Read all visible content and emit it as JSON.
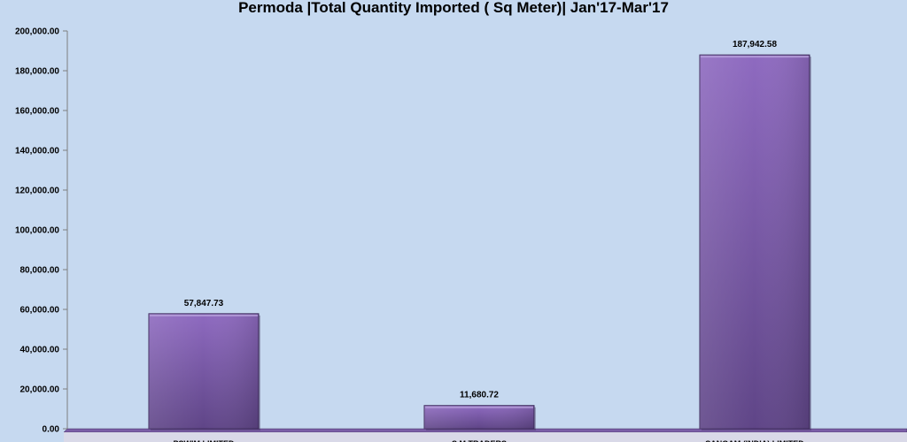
{
  "chart_data": {
    "type": "bar",
    "title": "Permoda |Total Quantity Imported ( Sq Meter)| Jan'17-Mar'17",
    "xlabel": "",
    "ylabel": "",
    "categories": [
      "PSWIM LIMITED",
      "S M TRADERS",
      "SANGAM (INDIA) LIMITED"
    ],
    "values": [
      57847.73,
      11680.72,
      187942.58
    ],
    "value_labels": [
      "57,847.73",
      "11,680.72",
      "187,942.58"
    ],
    "ylim": [
      0,
      200000
    ],
    "yticks": [
      0,
      20000,
      40000,
      60000,
      80000,
      100000,
      120000,
      140000,
      160000,
      180000,
      200000
    ],
    "ytick_labels": [
      "0.00",
      "20,000.00",
      "40,000.00",
      "60,000.00",
      "80,000.00",
      "100,000.00",
      "120,000.00",
      "140,000.00",
      "160,000.00",
      "180,000.00",
      "200,000.00"
    ],
    "grid": false,
    "legend": "none",
    "colors": {
      "background": "#c6d9f0",
      "bar_top": "#8e6ac0",
      "bar_bottom": "#5f4587",
      "bar_edge": "#3d2a5c",
      "floor": "#7b5ea7",
      "axis": "#7f7f7f"
    }
  }
}
